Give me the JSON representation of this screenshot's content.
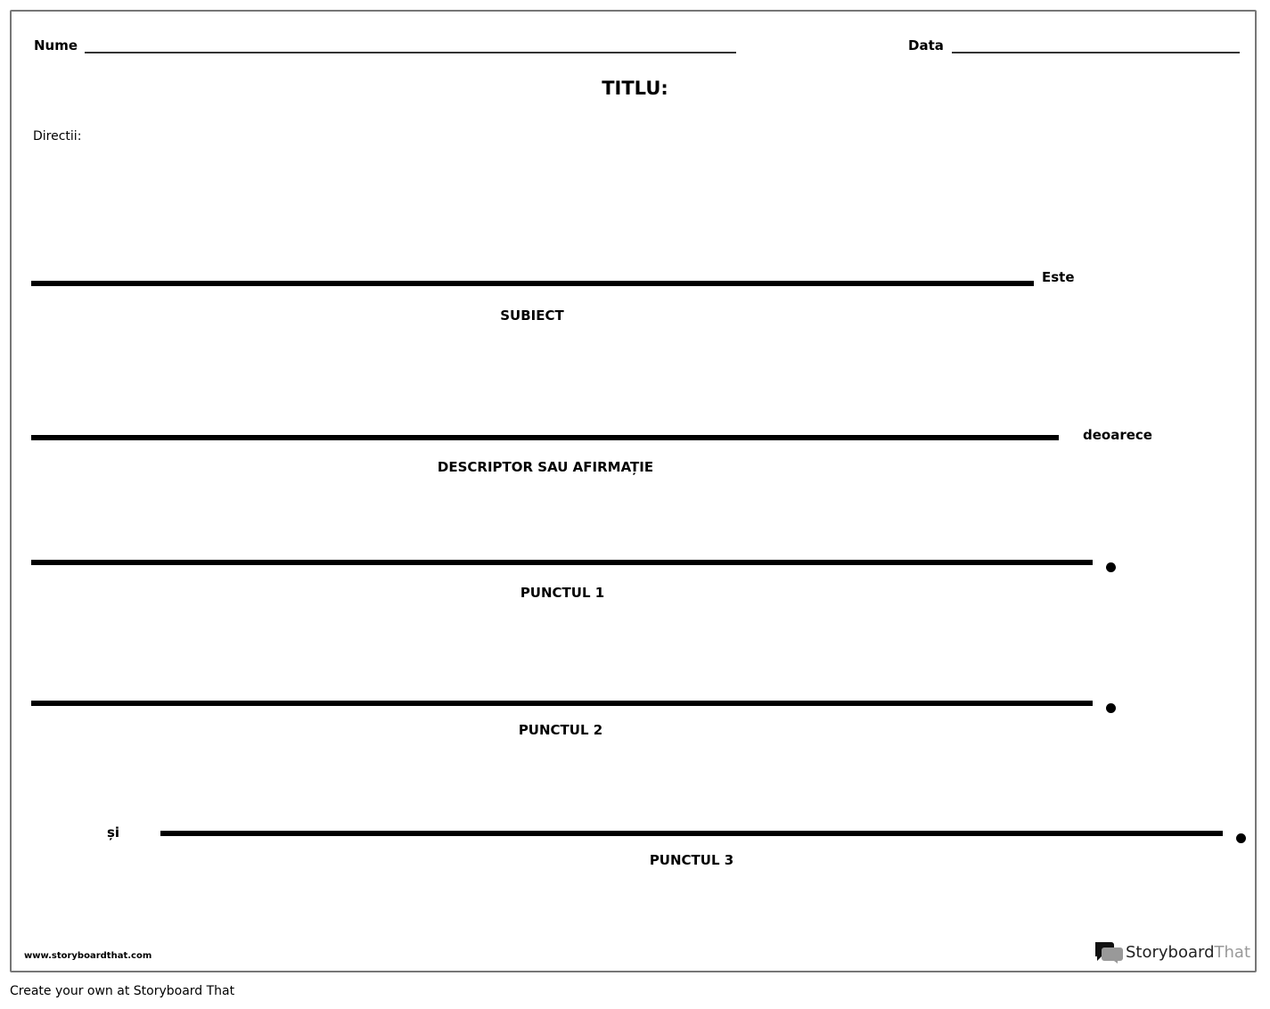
{
  "header": {
    "name_label": "Nume",
    "date_label": "Data",
    "title": "TITLU:",
    "directions": "Directii:"
  },
  "rows": [
    {
      "caption": "SUBIECT",
      "connector": "Este"
    },
    {
      "caption": "DESCRIPTOR SAU AFIRMAȚIE",
      "connector": "deoarece"
    },
    {
      "caption": "PUNCTUL 1"
    },
    {
      "caption": "PUNCTUL 2"
    },
    {
      "caption": "PUNCTUL 3",
      "prefix": "și"
    }
  ],
  "footer": {
    "website": "www.storyboardthat.com",
    "logo_text_a": "Storyboard",
    "logo_text_b": "That",
    "credit": "Create your own at Storyboard That"
  }
}
